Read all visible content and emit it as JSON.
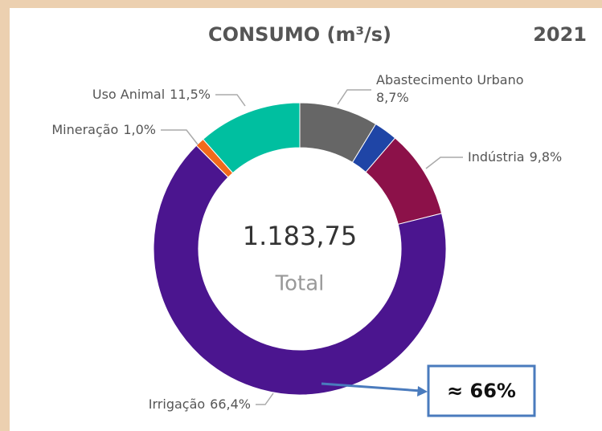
{
  "chart_data": {
    "type": "donut",
    "title": "CONSUMO (m³/s)",
    "year": "2021",
    "center_value": "1.183,75",
    "center_label": "Total",
    "annotation": "≈ 66%",
    "categories": [
      "Abastecimento Urbano",
      null,
      "Indústria",
      "Irrigação",
      "Mineração",
      "Uso Animal"
    ],
    "values": [
      8.7,
      2.6,
      9.8,
      66.4,
      1.0,
      11.5
    ],
    "value_labels": [
      "8,7%",
      null,
      "9,8%",
      "66,4%",
      "1,0%",
      "11,5%"
    ],
    "colors": [
      "#666666",
      "#1f45a6",
      "#8c1149",
      "#4b158f",
      "#f26a1b",
      "#00bfa0"
    ]
  }
}
